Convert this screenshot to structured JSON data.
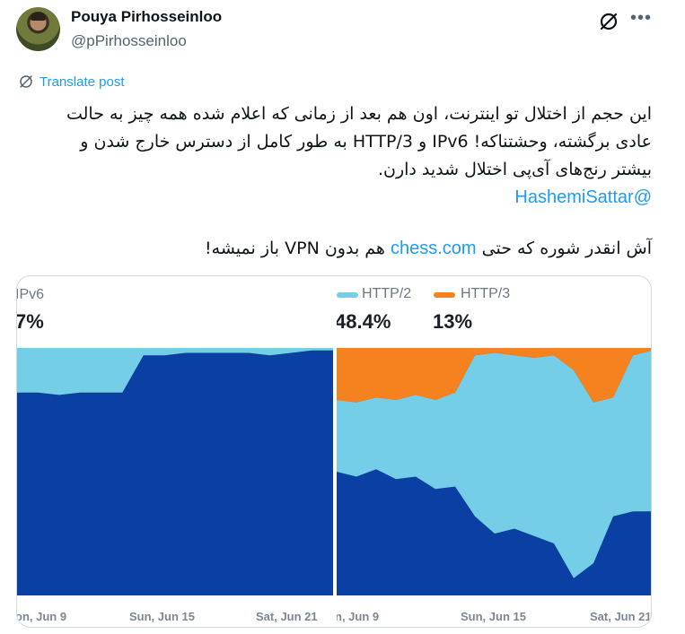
{
  "author": {
    "name": "Pouya Pirhosseinloo",
    "handle": "@pPirhosseinloo"
  },
  "icons": {
    "grok": "grok-icon",
    "more": "more-horizontal-icon",
    "translate": "translate-globe-icon"
  },
  "translate_label": "Translate post",
  "tweet": {
    "line1": "این حجم از اختلال تو اینترنت، اون هم بعد از زمانی که اعلام شده همه چیز به حالت",
    "line2": "عادی برگشته، وحشتناکه!  IPv6 و HTTP/3 به طور کامل از دسترس خارج شدن و",
    "line3": "بیشتر رنج‌های آی‌پی اختلال شدید دارن.",
    "mention": "@HashemiSattar",
    "line4_before": "آش انقدر شوره که حتی ",
    "line4_link": "chess.com",
    "line4_after": " هم بدون VPN باز نمیشه!"
  },
  "colors": {
    "link": "#1d9bf0",
    "dark_blue": "#0a3fa3",
    "light_blue": "#75cee7",
    "orange": "#f6821f"
  },
  "chart_data": [
    {
      "type": "area",
      "legend": [
        "IPv6"
      ],
      "headline_values": [
        "7%"
      ],
      "x_ticks": [
        "on, Jun 9",
        "Sun, Jun 15",
        "Sat, Jun 21"
      ],
      "series": [
        {
          "name": "IPv6",
          "color": "#75cee7",
          "values": [
            18,
            18,
            19,
            18,
            18,
            18,
            3,
            3,
            2,
            2,
            2,
            2,
            3,
            2,
            1,
            1
          ]
        }
      ],
      "ylim": [
        0,
        100
      ]
    },
    {
      "type": "area",
      "legend": [
        "HTTP/2",
        "HTTP/3"
      ],
      "headline_values": [
        "48.4%",
        "13%"
      ],
      "x_ticks": [
        "n, Jun 9",
        "Sun, Jun 15",
        "Sat, Jun 21"
      ],
      "series": [
        {
          "name": "HTTP/3",
          "color": "#f6821f",
          "values": [
            21,
            22,
            20,
            21,
            19,
            21,
            18,
            3,
            2,
            3,
            4,
            3,
            9,
            22,
            20,
            3,
            1
          ]
        },
        {
          "name": "HTTP/2",
          "color": "#75cee7",
          "values": [
            29,
            30,
            29,
            32,
            33,
            36,
            38,
            65,
            73,
            70,
            72,
            76,
            84,
            65,
            48,
            63,
            65
          ]
        }
      ],
      "ylim": [
        0,
        100
      ]
    }
  ]
}
